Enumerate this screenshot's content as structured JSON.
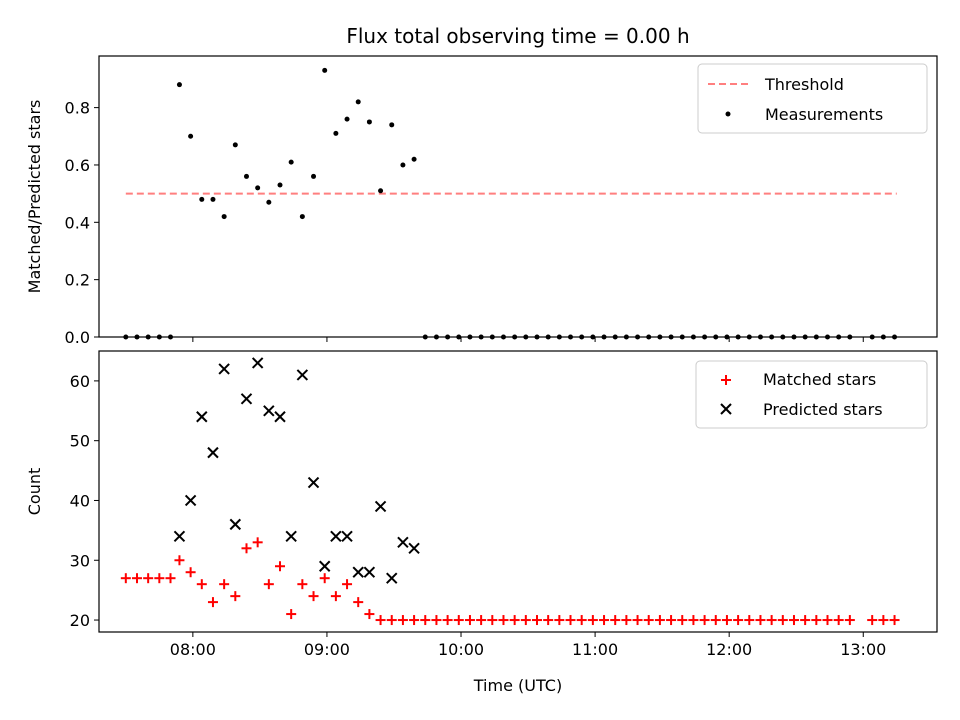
{
  "figure": {
    "title": "Flux total observing time = 0.00 h",
    "xlabel": "Time (UTC)"
  },
  "chart_data": [
    {
      "type": "scatter",
      "ylabel": "Matched/Predicted stars",
      "ylim": [
        0,
        0.98
      ],
      "yticks": [
        "0.0",
        "0.2",
        "0.4",
        "0.6",
        "0.8"
      ],
      "xlim": [
        "07:18",
        "13:33"
      ],
      "xticks": [
        "08:00",
        "09:00",
        "10:00",
        "11:00",
        "12:00",
        "13:00"
      ],
      "show_xtick_labels": false,
      "grid": false,
      "legend_position": "top-right",
      "threshold": {
        "name": "Threshold",
        "value": 0.5,
        "x_start": "07:30",
        "x_end": "13:15",
        "color": "#ff7f7f",
        "style": "dashed"
      },
      "series": [
        {
          "name": "Measurements",
          "color": "#000000",
          "marker": "dot",
          "x": [
            "07:30",
            "07:35",
            "07:40",
            "07:45",
            "07:50",
            "07:54",
            "07:59",
            "08:04",
            "08:09",
            "08:14",
            "08:19",
            "08:24",
            "08:29",
            "08:34",
            "08:39",
            "08:44",
            "08:49",
            "08:54",
            "08:59",
            "09:04",
            "09:09",
            "09:14",
            "09:19",
            "09:24",
            "09:29",
            "09:34",
            "09:39",
            "09:44",
            "09:49",
            "09:54",
            "09:59",
            "10:04",
            "10:09",
            "10:14",
            "10:19",
            "10:24",
            "10:29",
            "10:34",
            "10:39",
            "10:44",
            "10:49",
            "10:54",
            "10:59",
            "11:04",
            "11:09",
            "11:14",
            "11:19",
            "11:24",
            "11:29",
            "11:34",
            "11:39",
            "11:44",
            "11:49",
            "11:54",
            "11:59",
            "12:04",
            "12:09",
            "12:14",
            "12:19",
            "12:24",
            "12:29",
            "12:34",
            "12:39",
            "12:44",
            "12:49",
            "12:54",
            "13:04",
            "13:09",
            "13:14"
          ],
          "y": [
            0,
            0,
            0,
            0,
            0,
            0.88,
            0.7,
            0.48,
            0.48,
            0.42,
            0.67,
            0.56,
            0.52,
            0.47,
            0.53,
            0.61,
            0.42,
            0.56,
            0.93,
            0.71,
            0.76,
            0.82,
            0.75,
            0.51,
            0.74,
            0.6,
            0.62,
            0,
            0,
            0,
            0,
            0,
            0,
            0,
            0,
            0,
            0,
            0,
            0,
            0,
            0,
            0,
            0,
            0,
            0,
            0,
            0,
            0,
            0,
            0,
            0,
            0,
            0,
            0,
            0,
            0,
            0,
            0,
            0,
            0,
            0,
            0,
            0,
            0,
            0,
            0,
            0,
            0,
            0
          ]
        }
      ]
    },
    {
      "type": "scatter",
      "ylabel": "Count",
      "ylim": [
        18,
        65
      ],
      "yticks": [
        "20",
        "30",
        "40",
        "50",
        "60"
      ],
      "xlim": [
        "07:18",
        "13:33"
      ],
      "xticks": [
        "08:00",
        "09:00",
        "10:00",
        "11:00",
        "12:00",
        "13:00"
      ],
      "grid": false,
      "legend_position": "top-right",
      "series": [
        {
          "name": "Matched stars",
          "color": "#ff0000",
          "marker": "plus",
          "x": [
            "07:30",
            "07:35",
            "07:40",
            "07:45",
            "07:50",
            "07:54",
            "07:59",
            "08:04",
            "08:09",
            "08:14",
            "08:19",
            "08:24",
            "08:29",
            "08:34",
            "08:39",
            "08:44",
            "08:49",
            "08:54",
            "08:59",
            "09:04",
            "09:09",
            "09:14",
            "09:19",
            "09:24",
            "09:29",
            "09:34",
            "09:39",
            "09:44",
            "09:49",
            "09:54",
            "09:59",
            "10:04",
            "10:09",
            "10:14",
            "10:19",
            "10:24",
            "10:29",
            "10:34",
            "10:39",
            "10:44",
            "10:49",
            "10:54",
            "10:59",
            "11:04",
            "11:09",
            "11:14",
            "11:19",
            "11:24",
            "11:29",
            "11:34",
            "11:39",
            "11:44",
            "11:49",
            "11:54",
            "11:59",
            "12:04",
            "12:09",
            "12:14",
            "12:19",
            "12:24",
            "12:29",
            "12:34",
            "12:39",
            "12:44",
            "12:49",
            "12:54",
            "13:04",
            "13:09",
            "13:14"
          ],
          "y": [
            27,
            27,
            27,
            27,
            27,
            30,
            28,
            26,
            23,
            26,
            24,
            32,
            33,
            26,
            29,
            21,
            26,
            24,
            27,
            24,
            26,
            23,
            21,
            20,
            20,
            20,
            20,
            20,
            20,
            20,
            20,
            20,
            20,
            20,
            20,
            20,
            20,
            20,
            20,
            20,
            20,
            20,
            20,
            20,
            20,
            20,
            20,
            20,
            20,
            20,
            20,
            20,
            20,
            20,
            20,
            20,
            20,
            20,
            20,
            20,
            20,
            20,
            20,
            20,
            20,
            20,
            20,
            20,
            20
          ]
        },
        {
          "name": "Predicted stars",
          "color": "#000000",
          "marker": "x",
          "x": [
            "07:54",
            "07:59",
            "08:04",
            "08:09",
            "08:14",
            "08:19",
            "08:24",
            "08:29",
            "08:34",
            "08:39",
            "08:44",
            "08:49",
            "08:54",
            "08:59",
            "09:04",
            "09:09",
            "09:14",
            "09:19",
            "09:24",
            "09:29",
            "09:34",
            "09:39"
          ],
          "y": [
            34,
            40,
            54,
            48,
            62,
            36,
            57,
            63,
            55,
            54,
            34,
            61,
            43,
            29,
            34,
            34,
            28,
            28,
            39,
            27,
            33,
            32
          ]
        }
      ]
    }
  ]
}
